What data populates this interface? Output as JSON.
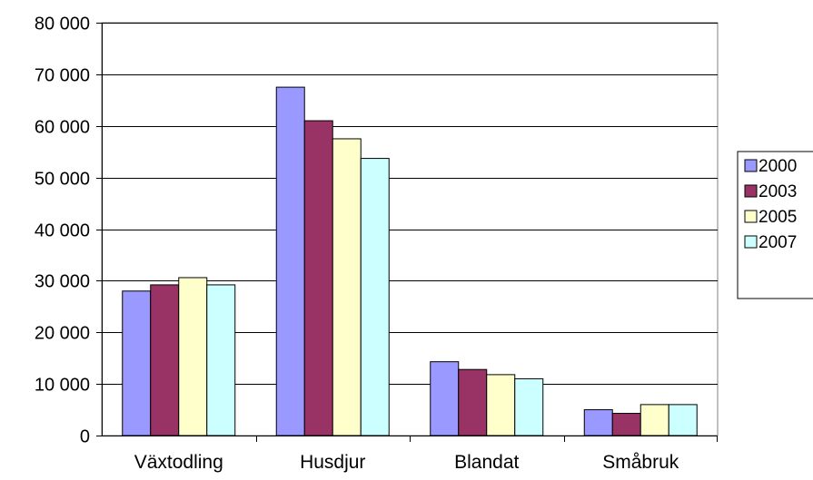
{
  "chart_data": {
    "type": "bar",
    "categories": [
      "Växtodling",
      "Husdjur",
      "Blandat",
      "Småbruk"
    ],
    "series": [
      {
        "name": "2000",
        "color": "#9999ff",
        "values": [
          28000,
          67500,
          14300,
          5000
        ]
      },
      {
        "name": "2003",
        "color": "#993366",
        "values": [
          29200,
          61000,
          12800,
          4300
        ]
      },
      {
        "name": "2005",
        "color": "#ffffcc",
        "values": [
          30600,
          57500,
          11800,
          6000
        ]
      },
      {
        "name": "2007",
        "color": "#ccffff",
        "values": [
          29200,
          53700,
          11000,
          6000
        ]
      }
    ],
    "ylim": [
      0,
      80000
    ],
    "yticks": [
      0,
      10000,
      20000,
      30000,
      40000,
      50000,
      60000,
      70000,
      80000
    ],
    "ytick_labels": [
      "0",
      "10 000",
      "20 000",
      "30 000",
      "40 000",
      "50 000",
      "60 000",
      "70 000",
      "80 000"
    ],
    "grid": true,
    "legend_position": "right"
  }
}
